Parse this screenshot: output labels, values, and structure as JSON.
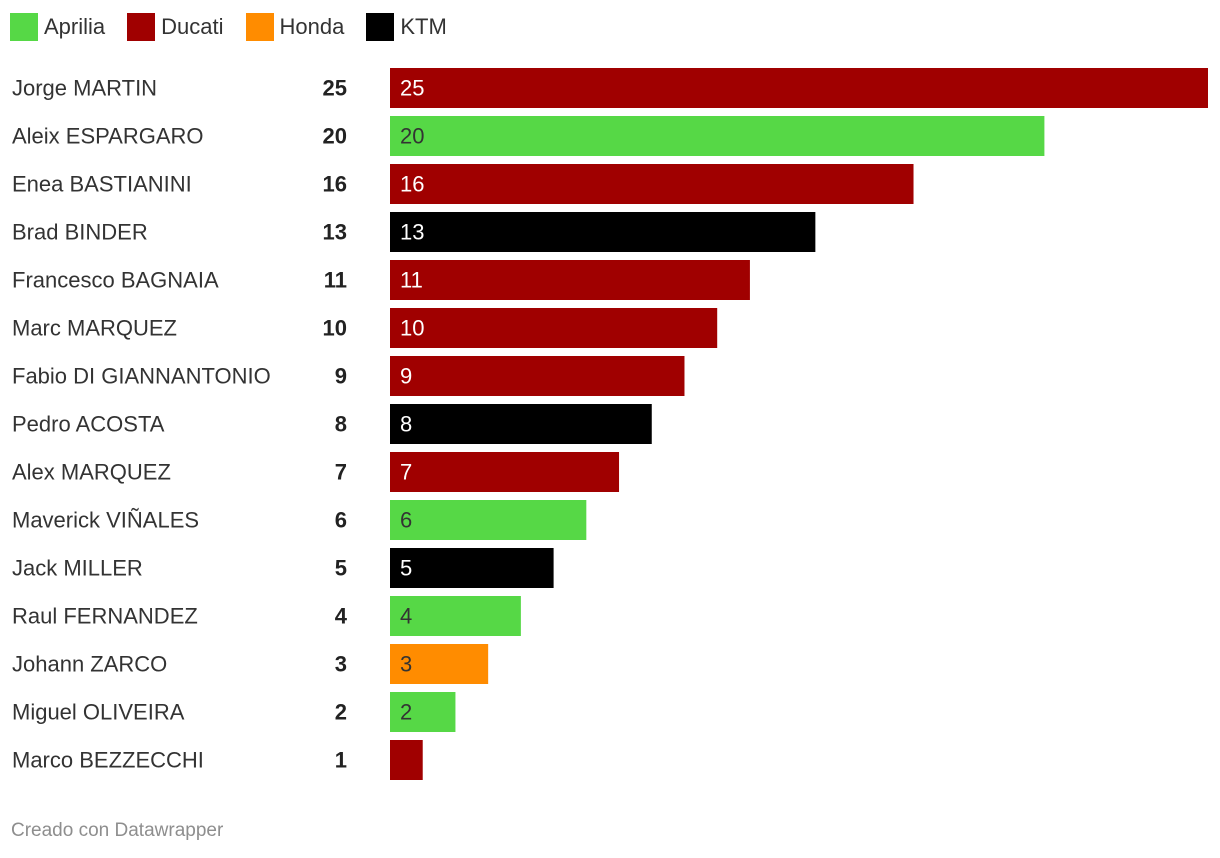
{
  "chart_data": {
    "type": "bar",
    "orientation": "horizontal",
    "legend": {
      "placement": "top-left",
      "items": [
        {
          "label": "Aprilia",
          "color": "#56d846"
        },
        {
          "label": "Ducati",
          "color": "#a00000"
        },
        {
          "label": "Honda",
          "color": "#ff8c00"
        },
        {
          "label": "KTM",
          "color": "#000000"
        }
      ]
    },
    "rows": [
      {
        "rider": "Jorge MARTIN",
        "value": 25,
        "team": "Ducati"
      },
      {
        "rider": "Aleix ESPARGARO",
        "value": 20,
        "team": "Aprilia"
      },
      {
        "rider": "Enea BASTIANINI",
        "value": 16,
        "team": "Ducati"
      },
      {
        "rider": "Brad BINDER",
        "value": 13,
        "team": "KTM"
      },
      {
        "rider": "Francesco BAGNAIA",
        "value": 11,
        "team": "Ducati"
      },
      {
        "rider": "Marc MARQUEZ",
        "value": 10,
        "team": "Ducati"
      },
      {
        "rider": "Fabio DI GIANNANTONIO",
        "value": 9,
        "team": "Ducati"
      },
      {
        "rider": "Pedro ACOSTA",
        "value": 8,
        "team": "KTM"
      },
      {
        "rider": "Alex MARQUEZ",
        "value": 7,
        "team": "Ducati"
      },
      {
        "rider": "Maverick VIÑALES",
        "value": 6,
        "team": "Aprilia"
      },
      {
        "rider": "Jack MILLER",
        "value": 5,
        "team": "KTM"
      },
      {
        "rider": "Raul FERNANDEZ",
        "value": 4,
        "team": "Aprilia"
      },
      {
        "rider": "Johann ZARCO",
        "value": 3,
        "team": "Honda"
      },
      {
        "rider": "Miguel OLIVEIRA",
        "value": 2,
        "team": "Aprilia"
      },
      {
        "rider": "Marco BEZZECCHI",
        "value": 1,
        "team": "Ducati"
      }
    ],
    "xlim": [
      0,
      25
    ],
    "grid": false
  },
  "footer": {
    "credit": "Creado con Datawrapper"
  }
}
